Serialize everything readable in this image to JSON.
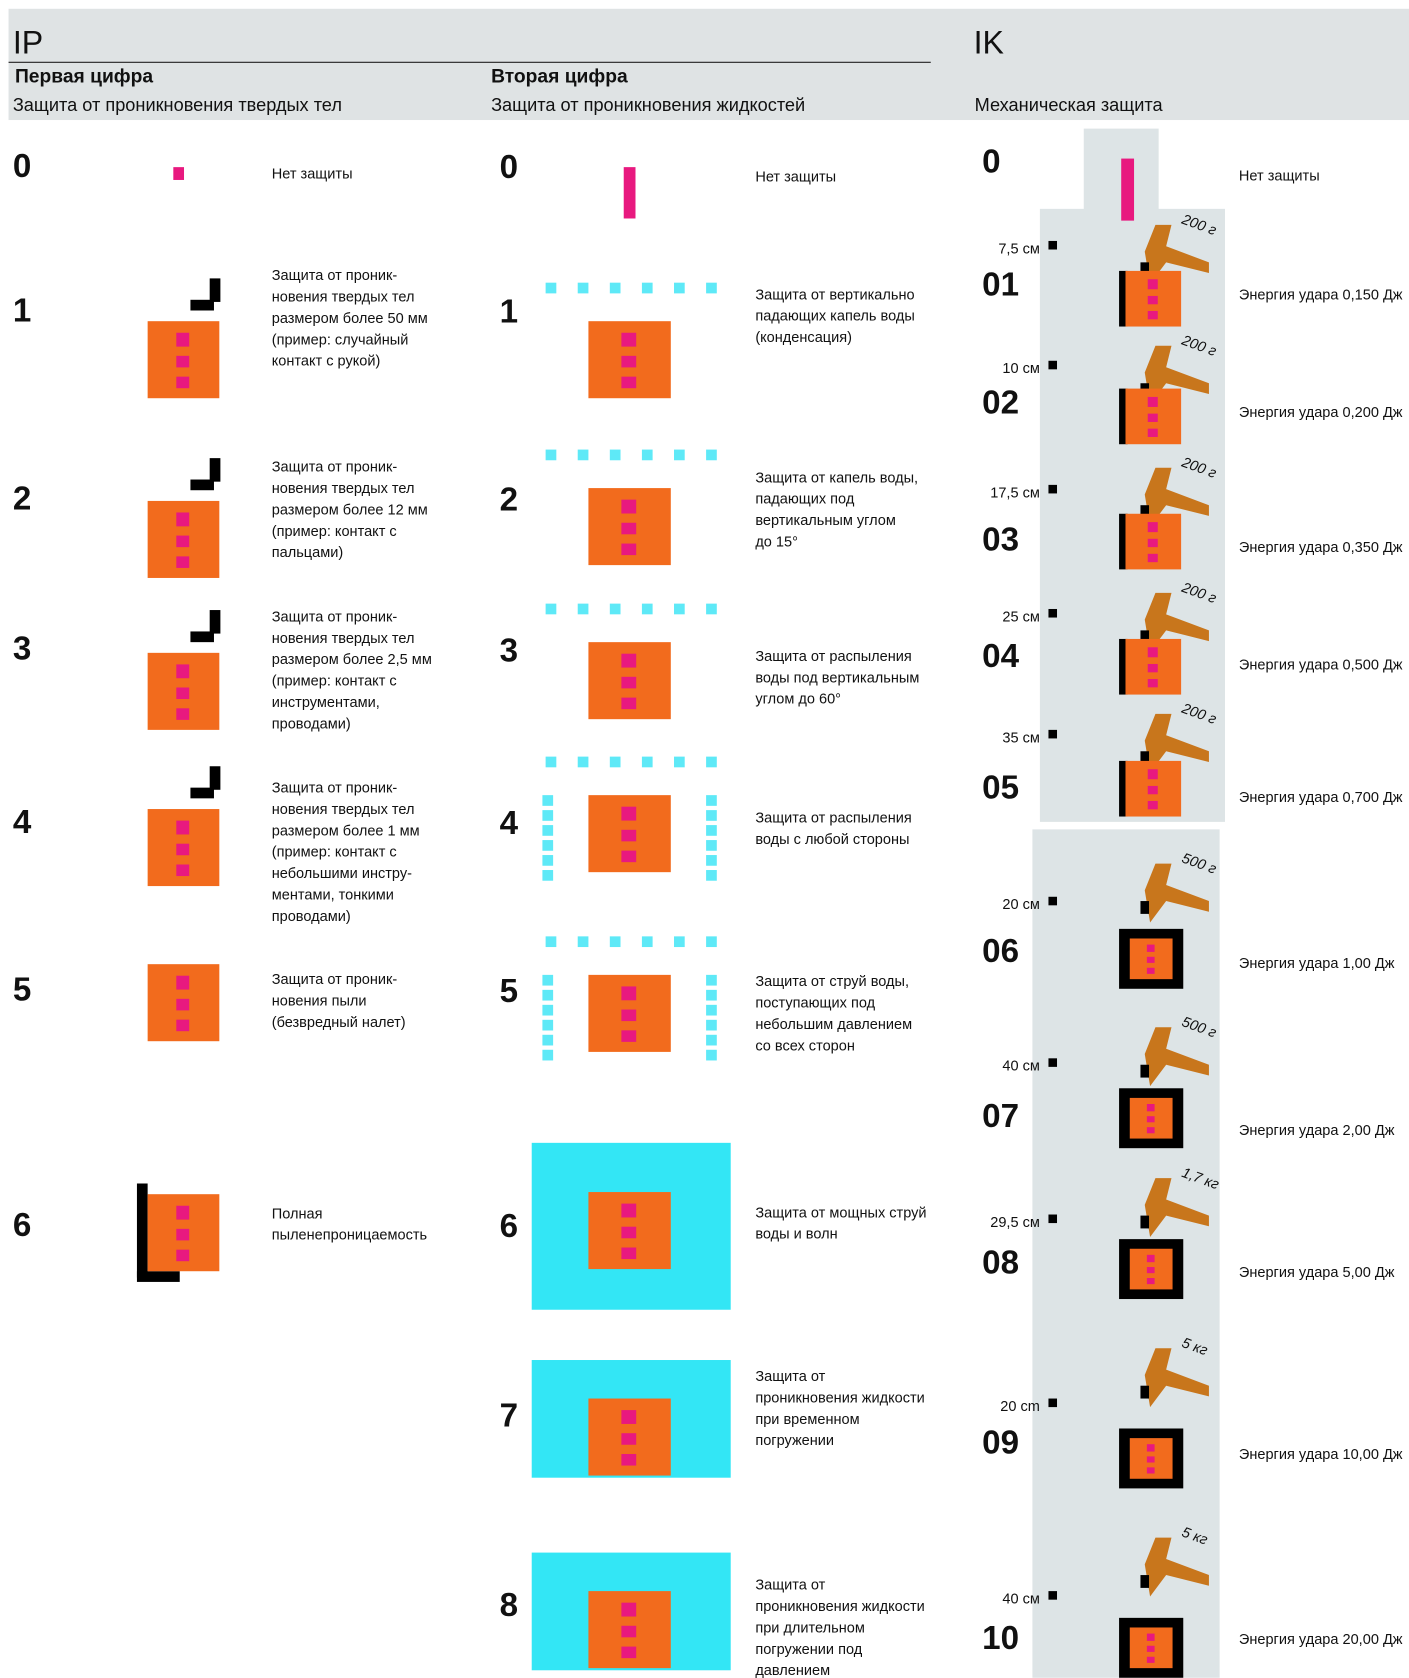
{
  "ip": {
    "title": "IP",
    "first_digit": {
      "heading": "Первая цифра",
      "subtitle": "Защита от проникновения твердых тел",
      "rows": [
        {
          "code": "0",
          "lines": [
            "Нет защиты"
          ]
        },
        {
          "code": "1",
          "lines": [
            "Защита от проник-",
            "новения твердых тел",
            "размером более 50 мм",
            "(пример: случайный",
            "контакт с рукой)"
          ]
        },
        {
          "code": "2",
          "lines": [
            "Защита от проник-",
            "новения твердых тел",
            "размером более 12 мм",
            "(пример: контакт с",
            "пальцами)"
          ]
        },
        {
          "code": "3",
          "lines": [
            "Защита от проник-",
            "новения твердых тел",
            "размером более 2,5  мм",
            "(пример: контакт с",
            "инструментами,",
            "проводами)"
          ]
        },
        {
          "code": "4",
          "lines": [
            "Защита от проник-",
            "новения твердых тел",
            "размером более 1 мм",
            "(пример: контакт с",
            "небольшими инстру-",
            "ментами, тонкими",
            "проводами)"
          ]
        },
        {
          "code": "5",
          "lines": [
            "Защита от проник-",
            "новения пыли",
            "(безвредный налет)"
          ]
        },
        {
          "code": "6",
          "lines": [
            "Полная",
            "пыленепроницаемость"
          ]
        }
      ]
    },
    "second_digit": {
      "heading": "Вторая цифра",
      "subtitle": "Защита от проникновения жидкостей",
      "rows": [
        {
          "code": "0",
          "lines": [
            "Нет защиты"
          ]
        },
        {
          "code": "1",
          "lines": [
            "Защита от вертикально",
            "падающих капель воды",
            "(конденсация)"
          ]
        },
        {
          "code": "2",
          "lines": [
            "Защита от капель воды,",
            "падающих под",
            "вертикальным углом",
            "до 15°"
          ]
        },
        {
          "code": "3",
          "lines": [
            "Защита от распыления",
            "воды под вертикальным",
            "углом до 60°"
          ]
        },
        {
          "code": "4",
          "lines": [
            "Защита от распыления",
            "воды с любой стороны"
          ]
        },
        {
          "code": "5",
          "lines": [
            "Защита от струй воды,",
            "поступающих под",
            "небольшим давлением",
            "со всех сторон"
          ]
        },
        {
          "code": "6",
          "lines": [
            "Защита от мощных струй",
            "воды и волн"
          ]
        },
        {
          "code": "7",
          "lines": [
            "Защита от",
            "проникновения жидкости",
            "при временном",
            "погружении"
          ]
        },
        {
          "code": "8",
          "lines": [
            "Защита от",
            "проникновения жидкости",
            "при длительном",
            "погружении под",
            "давлением"
          ]
        }
      ]
    }
  },
  "ik": {
    "title": "IK",
    "subtitle": "Механическая защита",
    "rows": [
      {
        "code": "0",
        "energy": "Нет защиты"
      },
      {
        "code": "01",
        "height": "7,5 см",
        "weight": "200 г",
        "energy": "Энергия удара 0,150 Дж"
      },
      {
        "code": "02",
        "height": "10 см",
        "weight": "200 г",
        "energy": "Энергия удара 0,200 Дж"
      },
      {
        "code": "03",
        "height": "17,5 см",
        "weight": "200 г",
        "energy": "Энергия удара 0,350 Дж"
      },
      {
        "code": "04",
        "height": "25 см",
        "weight": "200 г",
        "energy": "Энергия удара 0,500 Дж"
      },
      {
        "code": "05",
        "height": "35 см",
        "weight": "200 г",
        "energy": "Энергия удара 0,700 Дж"
      },
      {
        "code": "06",
        "height": "20 см",
        "weight": "500 г",
        "energy": "Энергия удара 1,00 Дж"
      },
      {
        "code": "07",
        "height": "40 см",
        "weight": "500 г",
        "energy": "Энергия удара 2,00 Дж"
      },
      {
        "code": "08",
        "height": "29,5 см",
        "weight": "1,7 кг",
        "energy": "Энергия удара 5,00 Дж"
      },
      {
        "code": "09",
        "height": "20 cm",
        "weight": "5 кг",
        "energy": "Энергия удара 10,00 Дж"
      },
      {
        "code": "10",
        "height": "40 см",
        "weight": "5 кг",
        "energy": "Энергия удара 20,00 Дж"
      }
    ]
  }
}
